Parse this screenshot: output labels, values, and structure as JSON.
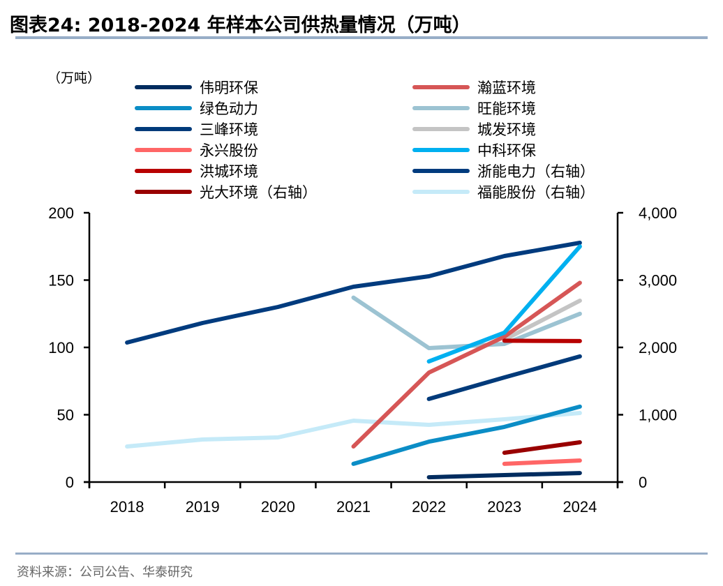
{
  "header": {
    "title": "图表24:  2018-2024 年样本公司供热量情况（万吨）"
  },
  "footer": {
    "source": "资料来源：公司公告、华泰研究"
  },
  "chart_data": {
    "type": "line",
    "title": "2018-2024 年样本公司供热量情况（万吨）",
    "unit_label": "（万吨）",
    "x": [
      "2018",
      "2019",
      "2020",
      "2021",
      "2022",
      "2023",
      "2024"
    ],
    "y_left": {
      "min": 0,
      "max": 200,
      "ticks": [
        0,
        50,
        100,
        150,
        200
      ],
      "tick_labels": [
        "0",
        "50",
        "100",
        "150",
        "200"
      ]
    },
    "y_right": {
      "min": 0,
      "max": 4000,
      "ticks": [
        0,
        1000,
        2000,
        3000,
        4000
      ],
      "tick_labels": [
        "0",
        "1,000",
        "2,000",
        "3,000",
        "4,000"
      ]
    },
    "grid": false,
    "legend_position": "top",
    "series": [
      {
        "name": "伟明环保",
        "color": "#002C5F",
        "axis": "left",
        "values": [
          null,
          null,
          null,
          null,
          3.6,
          5.2,
          6.7
        ]
      },
      {
        "name": "瀚蓝环境",
        "color": "#D65656",
        "axis": "left",
        "values": [
          null,
          null,
          null,
          26.4,
          81.3,
          108,
          148
        ]
      },
      {
        "name": "绿色动力",
        "color": "#0B8DC6",
        "axis": "left",
        "values": [
          null,
          null,
          null,
          13.5,
          30,
          41,
          56
        ]
      },
      {
        "name": "旺能环境",
        "color": "#9CC3D2",
        "axis": "left",
        "values": [
          null,
          null,
          null,
          137,
          99.5,
          102.6,
          125
        ]
      },
      {
        "name": "三峰环境",
        "color": "#003A7A",
        "axis": "left",
        "values": [
          null,
          null,
          null,
          null,
          61.7,
          77.7,
          93.3
        ]
      },
      {
        "name": "城发环境",
        "color": "#C4C4C4",
        "axis": "left",
        "values": [
          null,
          null,
          null,
          null,
          null,
          105.7,
          134.7
        ]
      },
      {
        "name": "永兴股份",
        "color": "#FF6666",
        "axis": "left",
        "values": [
          null,
          null,
          null,
          null,
          null,
          13.5,
          16
        ]
      },
      {
        "name": "中科环保",
        "color": "#00B0F0",
        "axis": "left",
        "values": [
          null,
          null,
          null,
          null,
          89.6,
          111,
          175
        ]
      },
      {
        "name": "洪城环境",
        "color": "#B80000",
        "axis": "left",
        "values": [
          null,
          null,
          null,
          null,
          null,
          105,
          104.7
        ]
      },
      {
        "name": "浙能电力（右轴）",
        "color": "#003B7E",
        "axis": "right",
        "values": [
          2073,
          2363,
          2601,
          2902,
          3057,
          3358,
          3554
        ]
      },
      {
        "name": "光大环境（右轴）",
        "color": "#990000",
        "axis": "right",
        "values": [
          null,
          null,
          null,
          null,
          null,
          435,
          591
        ]
      },
      {
        "name": "福能股份（右轴）",
        "color": "#C5EAF8",
        "axis": "right",
        "values": [
          528,
          632,
          663,
          912,
          850,
          933,
          1026
        ]
      }
    ]
  }
}
